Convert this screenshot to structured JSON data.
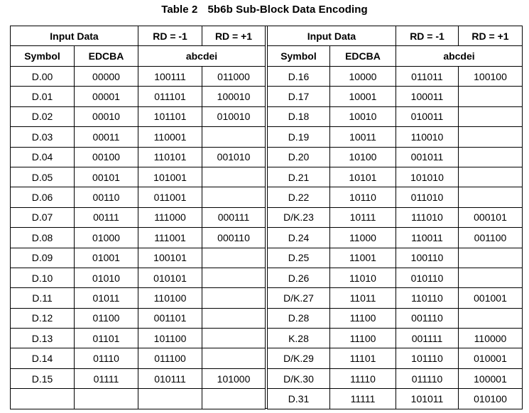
{
  "table": {
    "number": "Table 2",
    "title": "5b6b Sub-Block Data Encoding"
  },
  "headers": {
    "input_data": "Input Data",
    "rd_neg": "RD = -1",
    "rd_pos": "RD = +1",
    "symbol": "Symbol",
    "edcba": "EDCBA",
    "abcdei": "abcdei"
  },
  "left_rows": [
    [
      "D.00",
      "00000",
      "100111",
      "011000"
    ],
    [
      "D.01",
      "00001",
      "011101",
      "100010"
    ],
    [
      "D.02",
      "00010",
      "101101",
      "010010"
    ],
    [
      "D.03",
      "00011",
      "110001",
      ""
    ],
    [
      "D.04",
      "00100",
      "110101",
      "001010"
    ],
    [
      "D.05",
      "00101",
      "101001",
      ""
    ],
    [
      "D.06",
      "00110",
      "011001",
      ""
    ],
    [
      "D.07",
      "00111",
      "111000",
      "000111"
    ],
    [
      "D.08",
      "01000",
      "111001",
      "000110"
    ],
    [
      "D.09",
      "01001",
      "100101",
      ""
    ],
    [
      "D.10",
      "01010",
      "010101",
      ""
    ],
    [
      "D.11",
      "01011",
      "110100",
      ""
    ],
    [
      "D.12",
      "01100",
      "001101",
      ""
    ],
    [
      "D.13",
      "01101",
      "101100",
      ""
    ],
    [
      "D.14",
      "01110",
      "011100",
      ""
    ],
    [
      "D.15",
      "01111",
      "010111",
      "101000"
    ],
    [
      "",
      "",
      "",
      ""
    ]
  ],
  "right_rows": [
    [
      "D.16",
      "10000",
      "011011",
      "100100"
    ],
    [
      "D.17",
      "10001",
      "100011",
      ""
    ],
    [
      "D.18",
      "10010",
      "010011",
      ""
    ],
    [
      "D.19",
      "10011",
      "110010",
      ""
    ],
    [
      "D.20",
      "10100",
      "001011",
      ""
    ],
    [
      "D.21",
      "10101",
      "101010",
      ""
    ],
    [
      "D.22",
      "10110",
      "011010",
      ""
    ],
    [
      "D/K.23",
      "10111",
      "111010",
      "000101"
    ],
    [
      "D.24",
      "11000",
      "110011",
      "001100"
    ],
    [
      "D.25",
      "11001",
      "100110",
      ""
    ],
    [
      "D.26",
      "11010",
      "010110",
      ""
    ],
    [
      "D/K.27",
      "11011",
      "110110",
      "001001"
    ],
    [
      "D.28",
      "11100",
      "001110",
      ""
    ],
    [
      "K.28",
      "11100",
      "001111",
      "110000"
    ],
    [
      "D/K.29",
      "11101",
      "101110",
      "010001"
    ],
    [
      "D/K.30",
      "11110",
      "011110",
      "100001"
    ],
    [
      "D.31",
      "11111",
      "101011",
      "010100"
    ]
  ]
}
